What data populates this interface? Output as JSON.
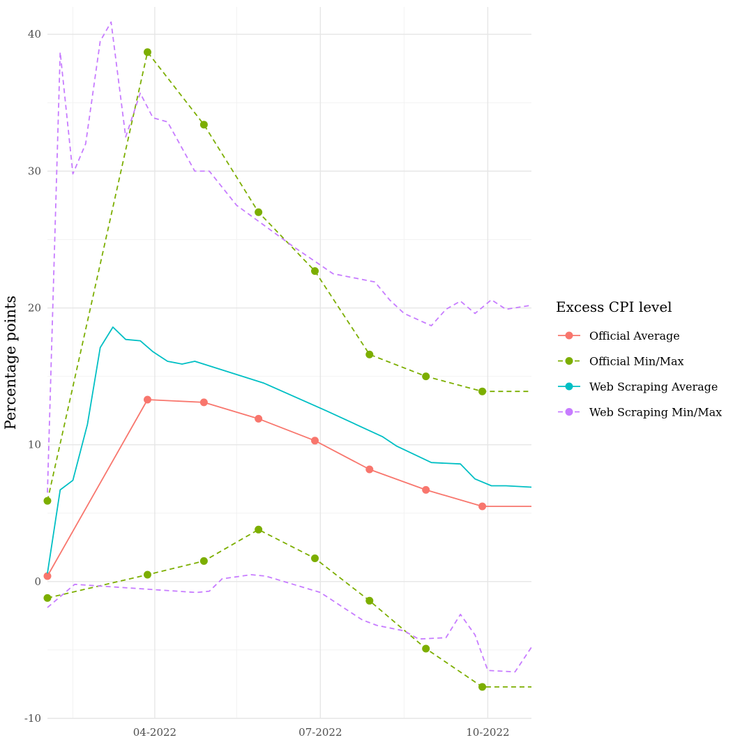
{
  "chart_data": {
    "type": "line",
    "ylabel": "Percentage points",
    "xlabel": "",
    "xlim": [
      "2022-02-01",
      "2022-10-25"
    ],
    "ylim": [
      -10,
      42
    ],
    "y_ticks": [
      -10,
      0,
      10,
      20,
      30,
      40
    ],
    "x_ticks": [
      {
        "date": "2022-04-01",
        "label": "04-2022"
      },
      {
        "date": "2022-07-01",
        "label": "07-2022"
      },
      {
        "date": "2022-10-01",
        "label": "10-2022"
      }
    ],
    "x_minor_ticks": [
      "2022-02-15",
      "2022-05-16",
      "2022-08-16"
    ],
    "y_minor_ticks": [
      -5,
      5,
      15,
      25,
      35
    ],
    "grid": true,
    "legend": {
      "title": "Excess CPI level",
      "placement": "right",
      "entries": [
        {
          "label": "Official Average",
          "color": "#F8766D",
          "dashed": false
        },
        {
          "label": "Official Min/Max",
          "color": "#7CAE00",
          "dashed": true
        },
        {
          "label": "Web Scraping Average",
          "color": "#00BFC4",
          "dashed": false
        },
        {
          "label": "Web Scraping Min/Max",
          "color": "#C77CFF",
          "dashed": true
        }
      ]
    },
    "series": [
      {
        "name": "Official Average",
        "color": "#F8766D",
        "dashed": false,
        "markers": true,
        "points": [
          [
            "2022-02-01",
            0.4
          ],
          [
            "2022-03-28",
            13.3
          ],
          [
            "2022-04-28",
            13.1
          ],
          [
            "2022-05-28",
            11.9
          ],
          [
            "2022-06-28",
            10.3
          ],
          [
            "2022-07-28",
            8.2
          ],
          [
            "2022-08-28",
            6.7
          ],
          [
            "2022-09-28",
            5.5
          ],
          [
            "2022-10-25",
            5.5
          ]
        ]
      },
      {
        "name": "Official Min/Max",
        "color": "#7CAE00",
        "dashed": true,
        "markers": true,
        "points": [
          [
            "2022-02-01",
            5.9
          ],
          [
            "2022-03-28",
            38.7
          ],
          [
            "2022-04-28",
            33.4
          ],
          [
            "2022-05-28",
            27.0
          ],
          [
            "2022-06-28",
            22.7
          ],
          [
            "2022-07-28",
            16.6
          ],
          [
            "2022-08-28",
            15.0
          ],
          [
            "2022-09-28",
            13.9
          ],
          [
            "2022-10-25",
            13.9
          ]
        ]
      },
      {
        "name": "Official Min/Max",
        "color": "#7CAE00",
        "dashed": true,
        "markers": true,
        "points": [
          [
            "2022-02-01",
            -1.2
          ],
          [
            "2022-03-28",
            0.5
          ],
          [
            "2022-04-28",
            1.5
          ],
          [
            "2022-05-28",
            3.8
          ],
          [
            "2022-06-28",
            1.7
          ],
          [
            "2022-07-28",
            -1.4
          ],
          [
            "2022-08-28",
            -4.9
          ],
          [
            "2022-09-28",
            -7.7
          ],
          [
            "2022-10-25",
            -7.7
          ]
        ]
      },
      {
        "name": "Web Scraping Average",
        "color": "#00BFC4",
        "dashed": false,
        "markers": false,
        "points": [
          [
            "2022-02-01",
            0.6
          ],
          [
            "2022-02-08",
            6.7
          ],
          [
            "2022-02-15",
            7.4
          ],
          [
            "2022-02-23",
            11.5
          ],
          [
            "2022-03-02",
            17.1
          ],
          [
            "2022-03-09",
            18.6
          ],
          [
            "2022-03-16",
            17.7
          ],
          [
            "2022-03-24",
            17.6
          ],
          [
            "2022-03-31",
            16.8
          ],
          [
            "2022-04-08",
            16.1
          ],
          [
            "2022-04-16",
            15.9
          ],
          [
            "2022-04-23",
            16.1
          ],
          [
            "2022-05-31",
            14.5
          ],
          [
            "2022-07-04",
            12.5
          ],
          [
            "2022-08-04",
            10.6
          ],
          [
            "2022-08-12",
            9.9
          ],
          [
            "2022-08-31",
            8.7
          ],
          [
            "2022-09-16",
            8.6
          ],
          [
            "2022-09-24",
            7.5
          ],
          [
            "2022-10-03",
            7.0
          ],
          [
            "2022-10-11",
            7.0
          ],
          [
            "2022-10-25",
            6.9
          ]
        ]
      },
      {
        "name": "Web Scraping Min/Max",
        "color": "#C77CFF",
        "dashed": true,
        "markers": false,
        "points": [
          [
            "2022-02-01",
            6.5
          ],
          [
            "2022-02-08",
            38.7
          ],
          [
            "2022-02-15",
            29.8
          ],
          [
            "2022-02-22",
            32.0
          ],
          [
            "2022-03-02",
            39.5
          ],
          [
            "2022-03-08",
            40.9
          ],
          [
            "2022-03-16",
            32.5
          ],
          [
            "2022-03-24",
            35.7
          ],
          [
            "2022-03-31",
            33.9
          ],
          [
            "2022-04-08",
            33.6
          ],
          [
            "2022-04-23",
            30.0
          ],
          [
            "2022-05-01",
            30.0
          ],
          [
            "2022-05-16",
            27.5
          ],
          [
            "2022-06-16",
            24.5
          ],
          [
            "2022-07-08",
            22.5
          ],
          [
            "2022-07-31",
            21.9
          ],
          [
            "2022-08-08",
            20.6
          ],
          [
            "2022-08-16",
            19.6
          ],
          [
            "2022-08-31",
            18.7
          ],
          [
            "2022-09-08",
            19.9
          ],
          [
            "2022-09-16",
            20.5
          ],
          [
            "2022-09-24",
            19.6
          ],
          [
            "2022-10-03",
            20.6
          ],
          [
            "2022-10-11",
            19.9
          ],
          [
            "2022-10-25",
            20.2
          ]
        ]
      },
      {
        "name": "Web Scraping Min/Max",
        "color": "#C77CFF",
        "dashed": true,
        "markers": false,
        "points": [
          [
            "2022-02-01",
            -1.9
          ],
          [
            "2022-02-16",
            -0.2
          ],
          [
            "2022-04-24",
            -0.8
          ],
          [
            "2022-05-01",
            -0.7
          ],
          [
            "2022-05-08",
            0.2
          ],
          [
            "2022-05-24",
            0.5
          ],
          [
            "2022-06-01",
            0.4
          ],
          [
            "2022-07-01",
            -0.8
          ],
          [
            "2022-07-24",
            -2.8
          ],
          [
            "2022-08-01",
            -3.2
          ],
          [
            "2022-08-16",
            -3.6
          ],
          [
            "2022-08-24",
            -4.2
          ],
          [
            "2022-09-08",
            -4.1
          ],
          [
            "2022-09-16",
            -2.4
          ],
          [
            "2022-09-24",
            -3.9
          ],
          [
            "2022-10-01",
            -6.5
          ],
          [
            "2022-10-16",
            -6.6
          ],
          [
            "2022-10-25",
            -4.8
          ]
        ]
      }
    ]
  }
}
